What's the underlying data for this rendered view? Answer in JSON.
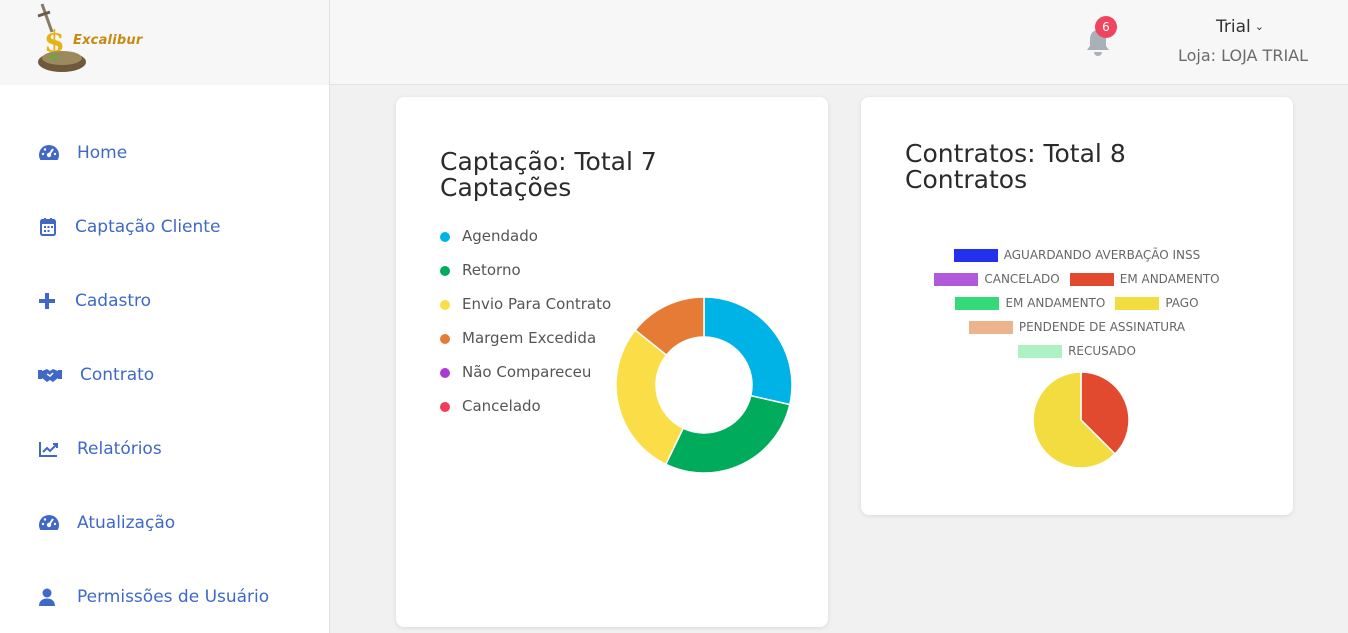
{
  "header": {
    "logo_text": "Excalibur",
    "notifications_count": "6",
    "user_name": "Trial",
    "store_label": "Loja: LOJA TRIAL"
  },
  "sidebar": {
    "items": [
      {
        "label": "Home",
        "icon": "dashboard-icon"
      },
      {
        "label": "Captação Cliente",
        "icon": "calendar-icon"
      },
      {
        "label": "Cadastro",
        "icon": "plus-icon"
      },
      {
        "label": "Contrato",
        "icon": "handshake-icon"
      },
      {
        "label": "Relatórios",
        "icon": "chart-line-icon"
      },
      {
        "label": "Atualização",
        "icon": "dashboard-icon"
      },
      {
        "label": "Permissões de Usuário",
        "icon": "user-icon"
      }
    ]
  },
  "captacao": {
    "title": "Captação: Total 7 Captações",
    "legend": [
      {
        "label": "Agendado",
        "color": "#00b3e6"
      },
      {
        "label": "Retorno",
        "color": "#00ab5b"
      },
      {
        "label": "Envio Para Contrato",
        "color": "#fadd47"
      },
      {
        "label": "Margem Excedida",
        "color": "#e67b35"
      },
      {
        "label": "Não Compareceu",
        "color": "#ab3ad3"
      },
      {
        "label": "Cancelado",
        "color": "#ef3e57"
      }
    ]
  },
  "contratos": {
    "title": "Contratos: Total 8 Contratos",
    "legend": [
      {
        "label": "AGUARDANDO AVERBAÇÃO INSS",
        "color": "#2330ec"
      },
      {
        "label": "CANCELADO",
        "color": "#b05ad9"
      },
      {
        "label": "EM ANDAMENTO",
        "color": "#e24a2f"
      },
      {
        "label": "EM ANDAMENTO",
        "color": "#34d97a"
      },
      {
        "label": "PAGO",
        "color": "#f2dc3f"
      },
      {
        "label": "PENDENDE DE ASSINATURA",
        "color": "#ecb48c"
      },
      {
        "label": "RECUSADO",
        "color": "#aef2c4"
      }
    ]
  },
  "chart_data": [
    {
      "type": "pie",
      "variant": "donut",
      "title": "Captação: Total 7 Captações",
      "categories": [
        "Agendado",
        "Retorno",
        "Envio Para Contrato",
        "Margem Excedida",
        "Não Compareceu",
        "Cancelado"
      ],
      "values": [
        2,
        2,
        2,
        1,
        0,
        0
      ],
      "colors": [
        "#00b3e6",
        "#00ab5b",
        "#fadd47",
        "#e67b35",
        "#ab3ad3",
        "#ef3e57"
      ],
      "legend": "left"
    },
    {
      "type": "pie",
      "title": "Contratos: Total 8 Contratos",
      "categories": [
        "AGUARDANDO AVERBAÇÃO INSS",
        "CANCELADO",
        "EM ANDAMENTO",
        "EM ANDAMENTO",
        "PAGO",
        "PENDENDE DE ASSINATURA",
        "RECUSADO"
      ],
      "values": [
        0,
        0,
        3,
        0,
        5,
        0,
        0
      ],
      "colors": [
        "#2330ec",
        "#b05ad9",
        "#e24a2f",
        "#34d97a",
        "#f2dc3f",
        "#ecb48c",
        "#aef2c4"
      ],
      "legend": "top"
    }
  ]
}
